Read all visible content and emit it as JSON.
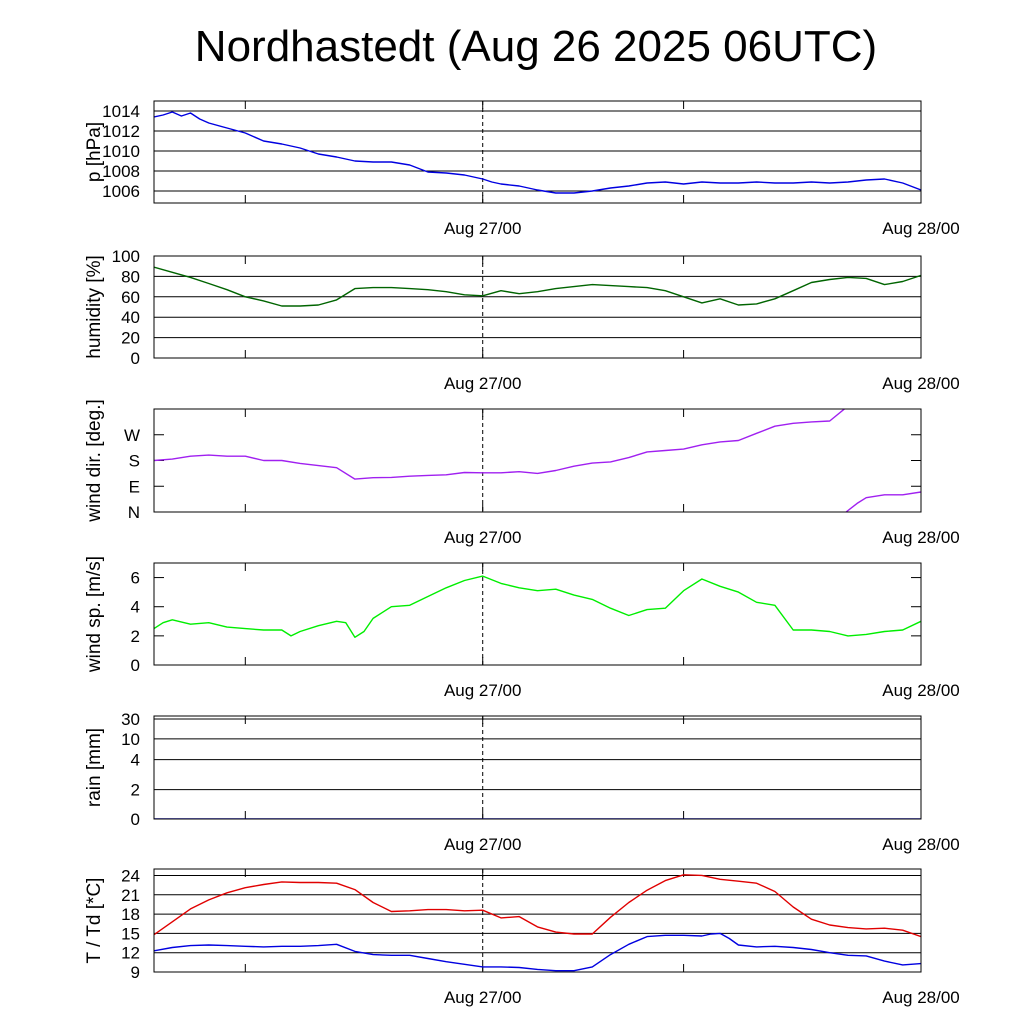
{
  "title": "Nordhastedt (Aug 26 2025 06UTC)",
  "chart_data": [
    {
      "type": "line",
      "ylabel": "p [hPa]",
      "xlim": [
        0,
        42
      ],
      "x_ticks": [
        {
          "x": 18,
          "label": "Aug 27/00"
        },
        {
          "x": 42,
          "label": "Aug 28/00"
        }
      ],
      "ylim": [
        1004.8,
        1015
      ],
      "y_ticks": [
        1014,
        1012,
        1010,
        1008,
        1006
      ],
      "grid": true,
      "series": [
        {
          "color": "#0000e0",
          "x": [
            0,
            0.5,
            1,
            1.5,
            2,
            2.5,
            3,
            4,
            5,
            6,
            7,
            8,
            9,
            10,
            11,
            12,
            13,
            14,
            15,
            16,
            17,
            18,
            18.5,
            19,
            20,
            21,
            22,
            23,
            24,
            25,
            26,
            27,
            28,
            29,
            30,
            31,
            32,
            33,
            34,
            35,
            36,
            37,
            38,
            39,
            40,
            41,
            42
          ],
          "y": [
            1013.4,
            1013.6,
            1013.9,
            1013.5,
            1013.8,
            1013.2,
            1012.8,
            1012.3,
            1011.8,
            1011.0,
            1010.7,
            1010.3,
            1009.7,
            1009.4,
            1009.0,
            1008.9,
            1008.9,
            1008.6,
            1007.9,
            1007.8,
            1007.6,
            1007.2,
            1006.9,
            1006.7,
            1006.5,
            1006.1,
            1005.8,
            1005.8,
            1006.0,
            1006.3,
            1006.5,
            1006.8,
            1006.9,
            1006.7,
            1006.9,
            1006.8,
            1006.8,
            1006.9,
            1006.8,
            1006.8,
            1006.9,
            1006.8,
            1006.9,
            1007.1,
            1007.2,
            1006.8,
            1006.1
          ]
        }
      ]
    },
    {
      "type": "line",
      "ylabel": "humidity [%]",
      "xlim": [
        0,
        42
      ],
      "x_ticks": [
        {
          "x": 18,
          "label": "Aug 27/00"
        },
        {
          "x": 42,
          "label": "Aug 28/00"
        }
      ],
      "ylim": [
        0,
        100
      ],
      "y_ticks": [
        100,
        80,
        60,
        40,
        20,
        0
      ],
      "grid": true,
      "series": [
        {
          "color": "#006400",
          "x": [
            0,
            1,
            2,
            3,
            4,
            5,
            6,
            7,
            8,
            9,
            10,
            11,
            12,
            13,
            14,
            15,
            16,
            17,
            18,
            19,
            20,
            21,
            22,
            23,
            24,
            25,
            26,
            27,
            28,
            29,
            30,
            31,
            32,
            33,
            34,
            35,
            36,
            37,
            38,
            39,
            40,
            41,
            42
          ],
          "y": [
            89,
            84,
            79,
            73,
            67,
            60,
            56,
            51,
            51,
            52,
            57,
            68,
            69,
            69,
            68,
            67,
            65,
            62,
            61,
            66,
            63,
            65,
            68,
            70,
            72,
            71,
            70,
            69,
            66,
            60,
            54,
            58,
            52,
            53,
            58,
            66,
            74,
            77,
            79,
            78,
            72,
            75,
            81
          ]
        }
      ]
    },
    {
      "type": "line",
      "ylabel": "wind dir. [deg.]",
      "xlim": [
        0,
        42
      ],
      "x_ticks": [
        {
          "x": 18,
          "label": "Aug 27/00"
        },
        {
          "x": 42,
          "label": "Aug 28/00"
        }
      ],
      "ylim": [
        0,
        360
      ],
      "y_ticks": [
        {
          "value": 0,
          "label": "N"
        },
        {
          "value": 90,
          "label": "E"
        },
        {
          "value": 180,
          "label": "S"
        },
        {
          "value": 270,
          "label": "W"
        }
      ],
      "grid": false,
      "series": [
        {
          "color": "#a020f0",
          "x": [
            0,
            1,
            2,
            3,
            4,
            5,
            6,
            7,
            8,
            9,
            10,
            11,
            12,
            13,
            14,
            15,
            16,
            17,
            18,
            19,
            20,
            21,
            22,
            23,
            24,
            25,
            26,
            27,
            28,
            29,
            30,
            31,
            32,
            33,
            34,
            35,
            36,
            37,
            37.9
          ],
          "y": [
            180,
            185,
            195,
            199,
            195,
            195,
            180,
            180,
            170,
            162,
            155,
            115,
            120,
            121,
            125,
            128,
            130,
            138,
            137,
            137,
            141,
            135,
            145,
            160,
            171,
            175,
            190,
            210,
            215,
            220,
            235,
            245,
            250,
            275,
            300,
            310,
            315,
            318,
            365
          ]
        },
        {
          "color": "#a020f0",
          "x": [
            37.9,
            38.5,
            39,
            40,
            41,
            42
          ],
          "y": [
            0,
            30,
            50,
            60,
            60,
            70
          ]
        }
      ]
    },
    {
      "type": "line",
      "ylabel": "wind sp. [m/s]",
      "xlim": [
        0,
        42
      ],
      "x_ticks": [
        {
          "x": 18,
          "label": "Aug 27/00"
        },
        {
          "x": 42,
          "label": "Aug 28/00"
        }
      ],
      "ylim": [
        0,
        7
      ],
      "y_ticks": [
        6.0,
        4.0,
        2.0,
        0.0
      ],
      "grid": false,
      "series": [
        {
          "color": "#00ee00",
          "x": [
            0,
            0.5,
            1,
            2,
            3,
            4,
            5,
            6,
            7,
            7.5,
            8,
            9,
            10,
            10.5,
            11,
            11.5,
            12,
            13,
            14,
            15,
            16,
            17,
            18,
            19,
            20,
            21,
            22,
            23,
            24,
            25,
            26,
            27,
            28,
            29,
            30,
            31,
            32,
            33,
            34,
            35,
            36,
            37,
            38,
            39,
            40,
            41,
            42
          ],
          "y": [
            2.5,
            2.9,
            3.1,
            2.8,
            2.9,
            2.6,
            2.5,
            2.4,
            2.4,
            2.0,
            2.3,
            2.7,
            3.0,
            2.9,
            1.9,
            2.3,
            3.2,
            4.0,
            4.1,
            4.7,
            5.3,
            5.8,
            6.1,
            5.6,
            5.3,
            5.1,
            5.2,
            4.8,
            4.5,
            3.9,
            3.4,
            3.8,
            3.9,
            5.1,
            5.9,
            5.4,
            5.0,
            4.3,
            4.1,
            2.4,
            2.4,
            2.3,
            2.0,
            2.1,
            2.3,
            2.4,
            3.0
          ]
        }
      ]
    },
    {
      "type": "line",
      "ylabel": "rain [mm]",
      "xlim": [
        0,
        42
      ],
      "x_ticks": [
        {
          "x": 18,
          "label": "Aug 27/00"
        },
        {
          "x": 42,
          "label": "Aug 28/00"
        }
      ],
      "ylim": [
        0,
        30
      ],
      "y_ticks": [
        30,
        10,
        4,
        2,
        0
      ],
      "grid": true,
      "series": [
        {
          "color": "#0000e0",
          "x": [
            0,
            42
          ],
          "y": [
            0,
            0
          ]
        }
      ]
    },
    {
      "type": "line",
      "ylabel": "T / Td [*C]",
      "xlim": [
        0,
        42
      ],
      "x_ticks": [
        {
          "x": 18,
          "label": "Aug 27/00"
        },
        {
          "x": 42,
          "label": "Aug 28/00"
        }
      ],
      "ylim": [
        9,
        25
      ],
      "y_ticks": [
        24,
        21,
        18,
        15,
        12,
        9
      ],
      "grid": true,
      "series": [
        {
          "color": "#e00000",
          "x": [
            0,
            1,
            2,
            3,
            4,
            5,
            6,
            7,
            8,
            9,
            10,
            11,
            12,
            13,
            14,
            15,
            16,
            17,
            18,
            19,
            20,
            21,
            22,
            23,
            24,
            25,
            26,
            27,
            28,
            29,
            30,
            31,
            32,
            33,
            34,
            35,
            36,
            37,
            38,
            39,
            40,
            41,
            42
          ],
          "y": [
            14.8,
            16.8,
            18.8,
            20.2,
            21.3,
            22.1,
            22.6,
            23.0,
            22.9,
            22.9,
            22.8,
            21.8,
            19.8,
            18.4,
            18.5,
            18.7,
            18.7,
            18.5,
            18.6,
            17.4,
            17.6,
            16.0,
            15.2,
            14.9,
            14.9,
            17.5,
            19.8,
            21.7,
            23.2,
            24.1,
            24.0,
            23.4,
            23.1,
            22.8,
            21.5,
            19.1,
            17.2,
            16.3,
            15.9,
            15.7,
            15.8,
            15.5,
            14.5
          ]
        },
        {
          "color": "#0000e0",
          "x": [
            0,
            1,
            2,
            3,
            4,
            5,
            6,
            7,
            8,
            9,
            10,
            11,
            12,
            13,
            14,
            15,
            16,
            17,
            18,
            19,
            20,
            21,
            22,
            23,
            24,
            25,
            26,
            27,
            28,
            29,
            30,
            30.5,
            31,
            31.5,
            32,
            33,
            34,
            35,
            36,
            37,
            38,
            39,
            40,
            41,
            42
          ],
          "y": [
            12.3,
            12.8,
            13.1,
            13.2,
            13.1,
            13.0,
            12.9,
            13.0,
            13.0,
            13.1,
            13.3,
            12.2,
            11.7,
            11.6,
            11.6,
            11.1,
            10.6,
            10.2,
            9.8,
            9.8,
            9.7,
            9.4,
            9.2,
            9.2,
            9.8,
            11.7,
            13.3,
            14.5,
            14.7,
            14.7,
            14.6,
            14.9,
            15.0,
            14.2,
            13.2,
            12.9,
            13.0,
            12.8,
            12.5,
            12.0,
            11.6,
            11.5,
            10.7,
            10.1,
            10.3
          ]
        }
      ]
    }
  ]
}
